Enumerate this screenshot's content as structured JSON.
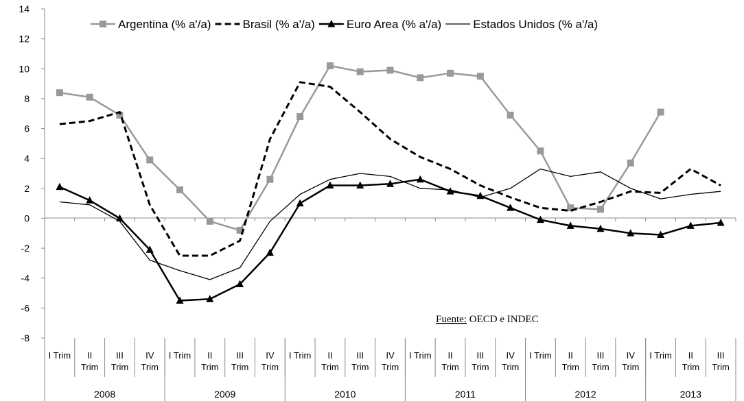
{
  "chart_data": {
    "type": "line",
    "ylim": [
      -8,
      14
    ],
    "y_ticks": [
      14,
      12,
      10,
      8,
      6,
      4,
      2,
      0,
      -2,
      -4,
      -6,
      -8
    ],
    "negative_tick_color": "#d02020",
    "categories": [
      [
        "I Trim"
      ],
      [
        "II",
        "Trim"
      ],
      [
        "III",
        "Trim"
      ],
      [
        "IV",
        "Trim"
      ],
      [
        "I Trim"
      ],
      [
        "II",
        "Trim"
      ],
      [
        "III",
        "Trim"
      ],
      [
        "IV",
        "Trim"
      ],
      [
        "I Trim"
      ],
      [
        "II",
        "Trim"
      ],
      [
        "III",
        "Trim"
      ],
      [
        "IV",
        "Trim"
      ],
      [
        "I Trim"
      ],
      [
        "II",
        "Trim"
      ],
      [
        "III",
        "Trim"
      ],
      [
        "IV",
        "Trim"
      ],
      [
        "I Trim"
      ],
      [
        "II",
        "Trim"
      ],
      [
        "III",
        "Trim"
      ],
      [
        "IV",
        "Trim"
      ],
      [
        "I Trim"
      ],
      [
        "II",
        "Trim"
      ],
      [
        "III",
        "Trim"
      ]
    ],
    "years": [
      "2008",
      "2009",
      "2010",
      "2011",
      "2012",
      "2013"
    ],
    "series": [
      {
        "name": "Argentina (% a'/a)",
        "color": "#999999",
        "style": "solid",
        "marker": "square",
        "values": [
          8.4,
          8.1,
          6.9,
          3.9,
          1.9,
          -0.2,
          -0.8,
          2.6,
          6.8,
          10.2,
          9.8,
          9.9,
          9.4,
          9.7,
          9.5,
          6.9,
          4.5,
          0.7,
          0.6,
          3.7,
          7.1,
          null,
          null
        ]
      },
      {
        "name": "Brasil (% a'/a)",
        "color": "#000000",
        "style": "dashed",
        "marker": "none",
        "values": [
          6.3,
          6.5,
          7.1,
          0.9,
          -2.5,
          -2.5,
          -1.5,
          5.3,
          9.1,
          8.8,
          7.1,
          5.3,
          4.1,
          3.3,
          2.2,
          1.4,
          0.7,
          0.5,
          1.1,
          1.8,
          1.7,
          3.3,
          2.2
        ]
      },
      {
        "name": "Euro Area (% a'/a)",
        "color": "#000000",
        "style": "solid-thick",
        "marker": "triangle",
        "values": [
          2.1,
          1.2,
          0.0,
          -2.1,
          -5.5,
          -5.4,
          -4.4,
          -2.3,
          1.0,
          2.2,
          2.2,
          2.3,
          2.6,
          1.8,
          1.5,
          0.7,
          -0.1,
          -0.5,
          -0.7,
          -1.0,
          -1.1,
          -0.5,
          -0.3
        ]
      },
      {
        "name": "Estados Unidos (% a'/a)",
        "color": "#000000",
        "style": "solid-thin",
        "marker": "none",
        "values": [
          1.1,
          0.9,
          -0.2,
          -2.8,
          -3.5,
          -4.1,
          -3.3,
          -0.2,
          1.6,
          2.6,
          3.0,
          2.8,
          2.0,
          1.9,
          1.4,
          2.0,
          3.3,
          2.8,
          3.1,
          2.0,
          1.3,
          1.6,
          1.8
        ]
      }
    ],
    "legend_position": "top",
    "annotation": {
      "underlined": "Fuente:",
      "rest": " OECD e INDEC"
    },
    "grid": false
  }
}
